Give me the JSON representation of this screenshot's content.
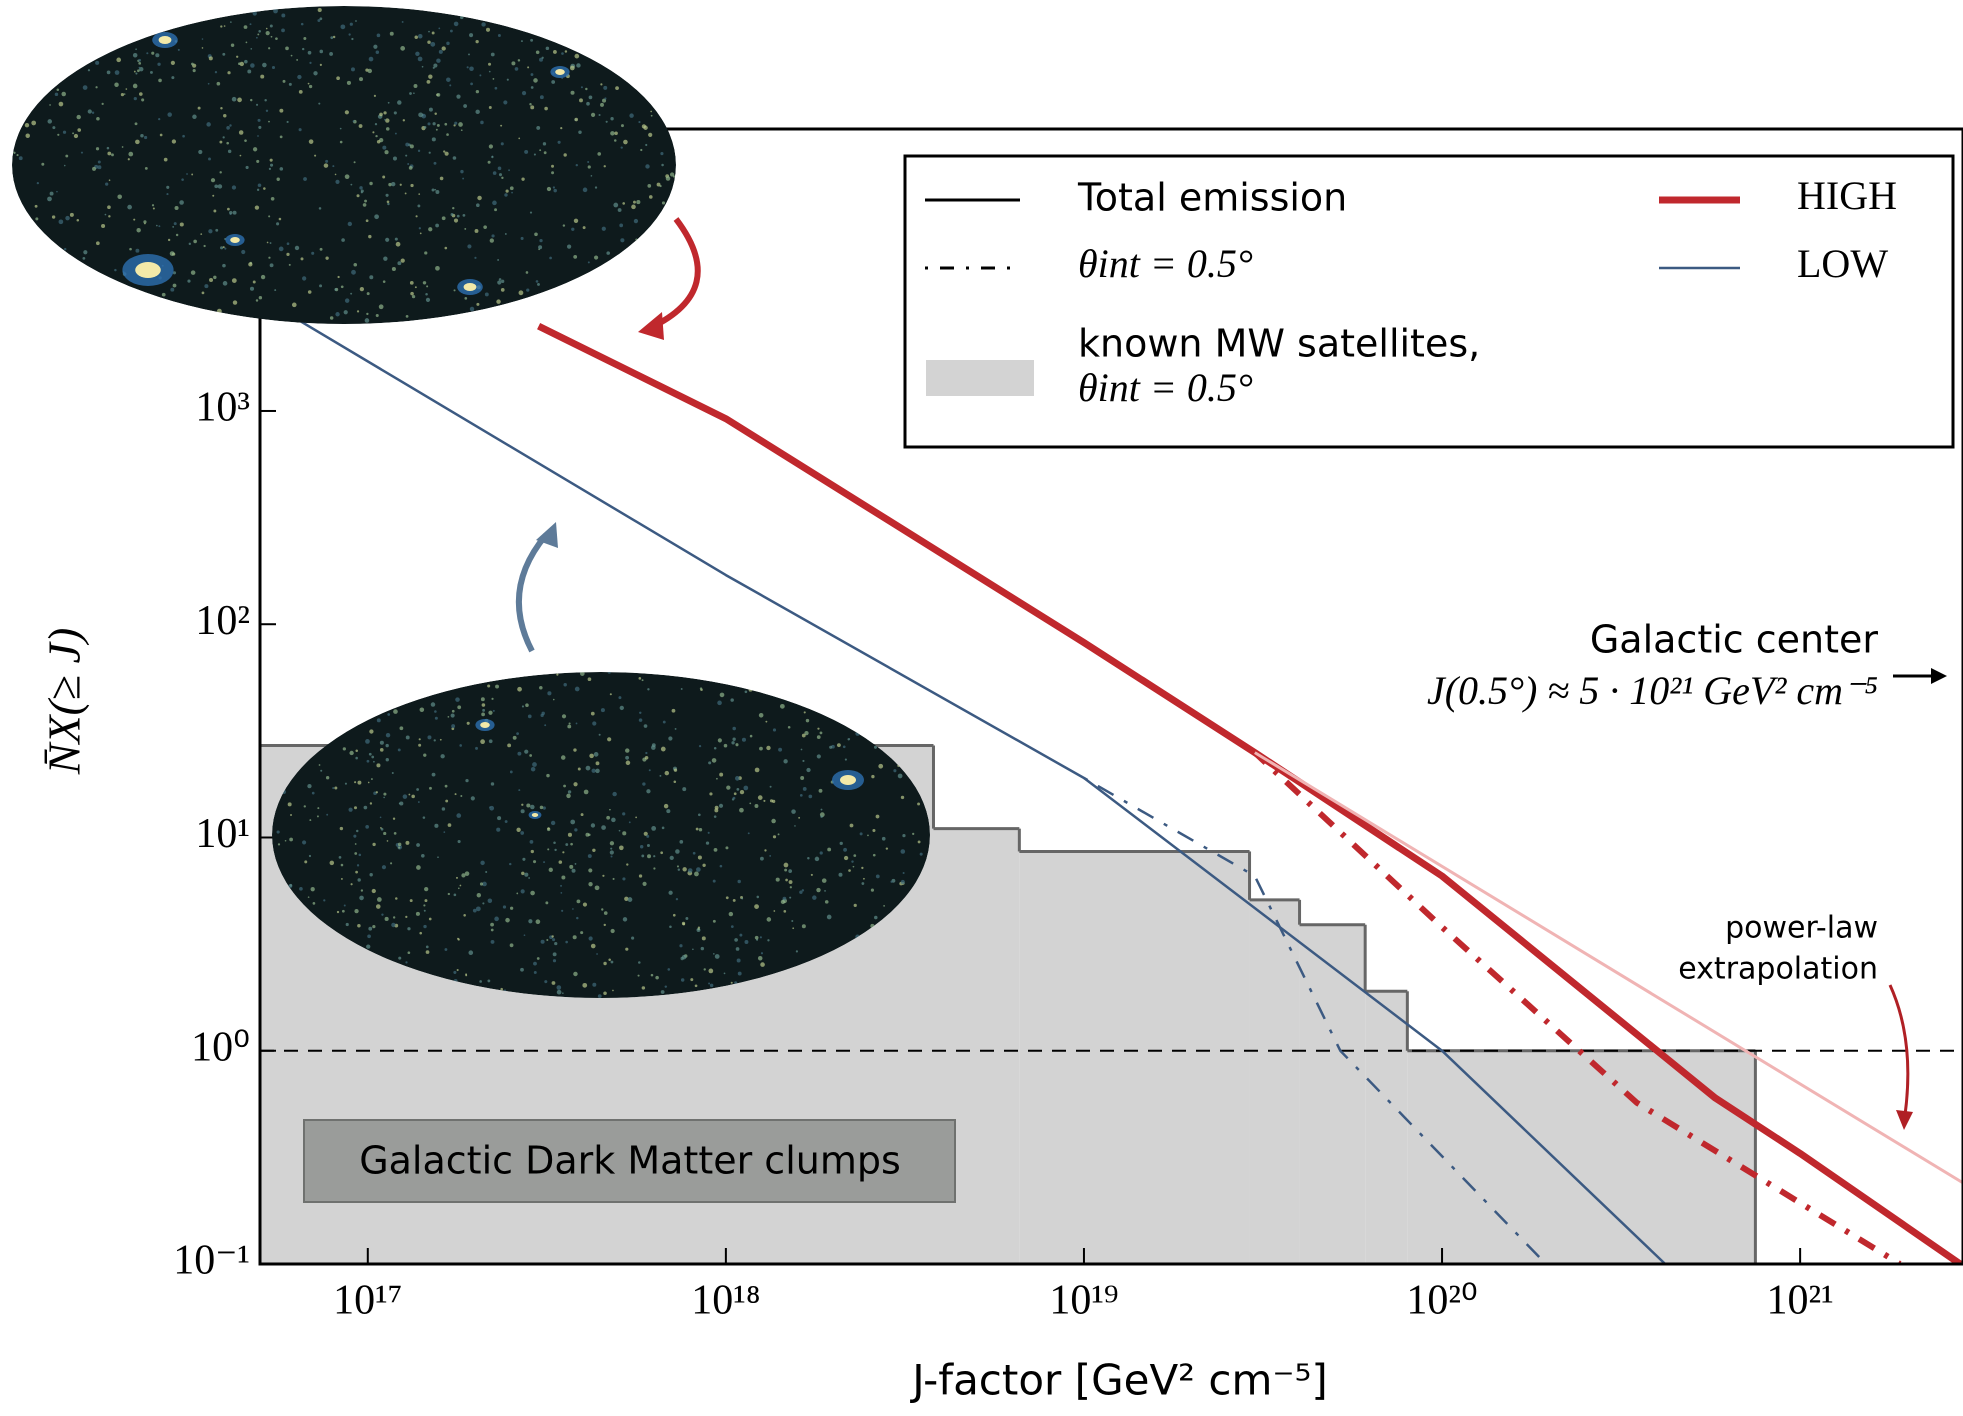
{
  "chart_data": {
    "type": "line",
    "xlabel": "J-factor [GeV² cm⁻⁵]",
    "ylabel": "N̄X(≥ J)",
    "xscale": "log",
    "yscale": "log",
    "xlim": [
      5e+16,
      2.85e+21
    ],
    "ylim": [
      0.1,
      21000
    ],
    "xticks": [
      {
        "value": 1e+17,
        "label": "10¹⁷"
      },
      {
        "value": 1e+18,
        "label": "10¹⁸"
      },
      {
        "value": 1e+19,
        "label": "10¹⁹"
      },
      {
        "value": 1e+20,
        "label": "10²⁰"
      },
      {
        "value": 1e+21,
        "label": "10²¹"
      }
    ],
    "yticks": [
      {
        "value": 0.1,
        "label": "10⁻¹"
      },
      {
        "value": 1,
        "label": "10⁰"
      },
      {
        "value": 10,
        "label": "10¹"
      },
      {
        "value": 100,
        "label": "10²"
      },
      {
        "value": 1000,
        "label": "10³"
      }
    ],
    "hline": 1,
    "series": [
      {
        "name": "HIGH",
        "color": "#c0282d",
        "style": "solid",
        "width": 7,
        "x": [
          3e+17,
          1e+18,
          1e+19,
          3e+19,
          1e+20,
          5.8e+20,
          1e+21,
          2.8e+21
        ],
        "values": [
          2500,
          920,
          82,
          25,
          6.6,
          0.6,
          0.33,
          0.1
        ]
      },
      {
        "color": "#c0282d",
        "style": "dashdot",
        "width": 6,
        "x": [
          1e+19,
          3e+19,
          1e+20,
          3.5e+20,
          1.9e+21
        ],
        "values": [
          82,
          25,
          3.8,
          0.57,
          0.1
        ]
      },
      {
        "color": "#f0b4b4",
        "style": "solid",
        "width": 3,
        "x": [
          3e+19,
          2.85e+21
        ],
        "values": [
          25,
          0.24
        ]
      },
      {
        "name": "LOW",
        "color": "#3c5a82",
        "style": "solid",
        "width": 2.5,
        "x": [
          5.9e+16,
          1e+18,
          1e+19,
          1e+20,
          4.2e+20
        ],
        "values": [
          2900,
          170,
          19,
          1,
          0.1
        ]
      },
      {
        "color": "#3c5a82",
        "style": "dashdot",
        "width": 2.5,
        "x": [
          1e+19,
          3e+19,
          5.2e+19,
          1.95e+20
        ],
        "values": [
          19,
          6.6,
          1,
          0.1
        ]
      }
    ],
    "satellites": {
      "label": [
        "known MW satellites,",
        "θint = 0.5°"
      ],
      "color": "#d3d3d3",
      "bins": [
        5e+16,
        3.8e+18,
        6.6e+18,
        2.9e+19,
        4e+19,
        6.1e+19,
        8e+19,
        7.5e+20
      ],
      "counts": [
        27,
        11,
        8.6,
        5.1,
        3.9,
        1.9,
        1
      ]
    },
    "style_legend": [
      "Total emission",
      "θint = 0.5°"
    ],
    "annotations": {
      "galactic_center": "Galactic center",
      "gc_value": "J(0.5°) ≈ 5 · 10²¹ GeV² cm⁻⁵",
      "power_law": [
        "power-law",
        "extrapolation"
      ],
      "clumps": "Galactic Dark Matter clumps"
    }
  }
}
